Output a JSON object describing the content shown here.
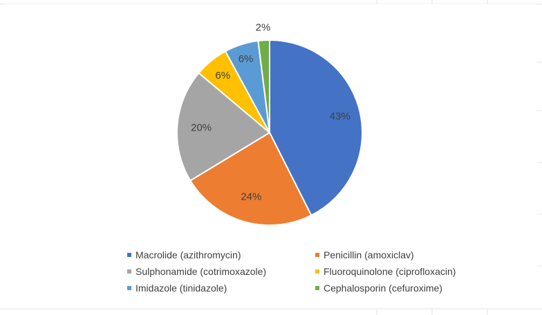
{
  "chart_data": {
    "type": "pie",
    "title": "",
    "slices": [
      {
        "label": "Macrolide (azithromycin)",
        "value": 43,
        "display": "43%",
        "color": "#4472C4"
      },
      {
        "label": "Penicillin (amoxiclav)",
        "value": 24,
        "display": "24%",
        "color": "#ED7D31"
      },
      {
        "label": "Sulphonamide (cotrimoxazole)",
        "value": 20,
        "display": "20%",
        "color": "#A5A5A5"
      },
      {
        "label": "Fluoroquinolone (ciprofloxacin)",
        "value": 6,
        "display": "6%",
        "color": "#FFC000"
      },
      {
        "label": "Imidazole (tinidazole)",
        "value": 6,
        "display": "6%",
        "color": "#5B9BD5"
      },
      {
        "label": "Cephalosporin (cefuroxime)",
        "value": 2,
        "display": "2%",
        "color": "#70AD47"
      }
    ],
    "start_angle_deg": 0,
    "direction": "clockwise",
    "legend_position": "bottom"
  }
}
